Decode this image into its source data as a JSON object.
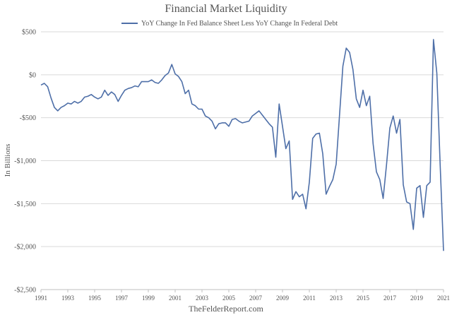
{
  "chart_data": {
    "type": "line",
    "title": "Financial Market Liquidity",
    "ylabel": "In Billions",
    "xlabel": "",
    "source": "TheFelderReport.com",
    "legend": {
      "placement": "top-center"
    },
    "grid": {
      "x": false,
      "y": true
    },
    "colors": {
      "series": "#4e6fa8"
    },
    "xlim": [
      1991,
      2021
    ],
    "ylim": [
      -2500,
      500
    ],
    "y_ticks": [
      500,
      0,
      -500,
      -1000,
      -1500,
      -2000,
      -2500
    ],
    "y_tick_labels": [
      "$500",
      "$0",
      "-$500",
      "-$1,000",
      "-$1,500",
      "-$2,000",
      "-$2,500"
    ],
    "x_ticks": [
      1991,
      1993,
      1995,
      1997,
      1999,
      2001,
      2003,
      2005,
      2007,
      2009,
      2011,
      2013,
      2015,
      2017,
      2019,
      2021
    ],
    "x_tick_labels": [
      "1991",
      "1993",
      "1995",
      "1997",
      "1999",
      "2001",
      "2003",
      "2005",
      "2007",
      "2009",
      "2011",
      "2013",
      "2015",
      "2017",
      "2019",
      "2021"
    ],
    "series": [
      {
        "name": "YoY Change In Fed Balance Sheet Less YoY Change In Federal Debt",
        "points": [
          [
            1991.0,
            -120
          ],
          [
            1991.25,
            -100
          ],
          [
            1991.5,
            -140
          ],
          [
            1991.75,
            -270
          ],
          [
            1992.0,
            -380
          ],
          [
            1992.25,
            -420
          ],
          [
            1992.5,
            -380
          ],
          [
            1992.75,
            -360
          ],
          [
            1993.0,
            -330
          ],
          [
            1993.25,
            -340
          ],
          [
            1993.5,
            -310
          ],
          [
            1993.75,
            -330
          ],
          [
            1994.0,
            -310
          ],
          [
            1994.25,
            -260
          ],
          [
            1994.5,
            -250
          ],
          [
            1994.75,
            -230
          ],
          [
            1995.0,
            -260
          ],
          [
            1995.25,
            -280
          ],
          [
            1995.5,
            -260
          ],
          [
            1995.75,
            -180
          ],
          [
            1996.0,
            -240
          ],
          [
            1996.25,
            -200
          ],
          [
            1996.5,
            -230
          ],
          [
            1996.75,
            -310
          ],
          [
            1997.0,
            -240
          ],
          [
            1997.25,
            -180
          ],
          [
            1997.5,
            -160
          ],
          [
            1997.75,
            -150
          ],
          [
            1998.0,
            -130
          ],
          [
            1998.25,
            -140
          ],
          [
            1998.5,
            -80
          ],
          [
            1998.75,
            -80
          ],
          [
            1999.0,
            -80
          ],
          [
            1999.25,
            -60
          ],
          [
            1999.5,
            -90
          ],
          [
            1999.75,
            -100
          ],
          [
            2000.0,
            -60
          ],
          [
            2000.25,
            -10
          ],
          [
            2000.5,
            20
          ],
          [
            2000.75,
            120
          ],
          [
            2001.0,
            10
          ],
          [
            2001.25,
            -20
          ],
          [
            2001.5,
            -80
          ],
          [
            2001.75,
            -220
          ],
          [
            2002.0,
            -180
          ],
          [
            2002.25,
            -340
          ],
          [
            2002.5,
            -360
          ],
          [
            2002.75,
            -400
          ],
          [
            2003.0,
            -400
          ],
          [
            2003.25,
            -480
          ],
          [
            2003.5,
            -500
          ],
          [
            2003.75,
            -540
          ],
          [
            2004.0,
            -630
          ],
          [
            2004.25,
            -570
          ],
          [
            2004.5,
            -560
          ],
          [
            2004.75,
            -560
          ],
          [
            2005.0,
            -600
          ],
          [
            2005.25,
            -520
          ],
          [
            2005.5,
            -510
          ],
          [
            2005.75,
            -540
          ],
          [
            2006.0,
            -560
          ],
          [
            2006.25,
            -550
          ],
          [
            2006.5,
            -540
          ],
          [
            2006.75,
            -480
          ],
          [
            2007.0,
            -450
          ],
          [
            2007.25,
            -420
          ],
          [
            2007.5,
            -470
          ],
          [
            2007.75,
            -520
          ],
          [
            2008.0,
            -570
          ],
          [
            2008.25,
            -610
          ],
          [
            2008.5,
            -960
          ],
          [
            2008.75,
            -340
          ],
          [
            2009.0,
            -600
          ],
          [
            2009.25,
            -860
          ],
          [
            2009.5,
            -770
          ],
          [
            2009.75,
            -1450
          ],
          [
            2010.0,
            -1360
          ],
          [
            2010.25,
            -1420
          ],
          [
            2010.5,
            -1390
          ],
          [
            2010.75,
            -1560
          ],
          [
            2011.0,
            -1250
          ],
          [
            2011.25,
            -740
          ],
          [
            2011.5,
            -690
          ],
          [
            2011.75,
            -680
          ],
          [
            2012.0,
            -920
          ],
          [
            2012.25,
            -1390
          ],
          [
            2012.5,
            -1300
          ],
          [
            2012.75,
            -1220
          ],
          [
            2013.0,
            -1040
          ],
          [
            2013.25,
            -470
          ],
          [
            2013.5,
            100
          ],
          [
            2013.75,
            310
          ],
          [
            2014.0,
            260
          ],
          [
            2014.25,
            60
          ],
          [
            2014.5,
            -280
          ],
          [
            2014.75,
            -380
          ],
          [
            2015.0,
            -180
          ],
          [
            2015.25,
            -360
          ],
          [
            2015.5,
            -250
          ],
          [
            2015.75,
            -800
          ],
          [
            2016.0,
            -1130
          ],
          [
            2016.25,
            -1220
          ],
          [
            2016.5,
            -1440
          ],
          [
            2016.75,
            -1050
          ],
          [
            2017.0,
            -620
          ],
          [
            2017.25,
            -480
          ],
          [
            2017.5,
            -680
          ],
          [
            2017.75,
            -520
          ],
          [
            2018.0,
            -1280
          ],
          [
            2018.25,
            -1480
          ],
          [
            2018.5,
            -1500
          ],
          [
            2018.75,
            -1800
          ],
          [
            2019.0,
            -1320
          ],
          [
            2019.25,
            -1290
          ],
          [
            2019.5,
            -1660
          ],
          [
            2019.75,
            -1290
          ],
          [
            2020.0,
            -1250
          ],
          [
            2020.25,
            410
          ],
          [
            2020.5,
            20
          ],
          [
            2020.75,
            -1050
          ],
          [
            2021.0,
            -2050
          ]
        ]
      }
    ]
  }
}
